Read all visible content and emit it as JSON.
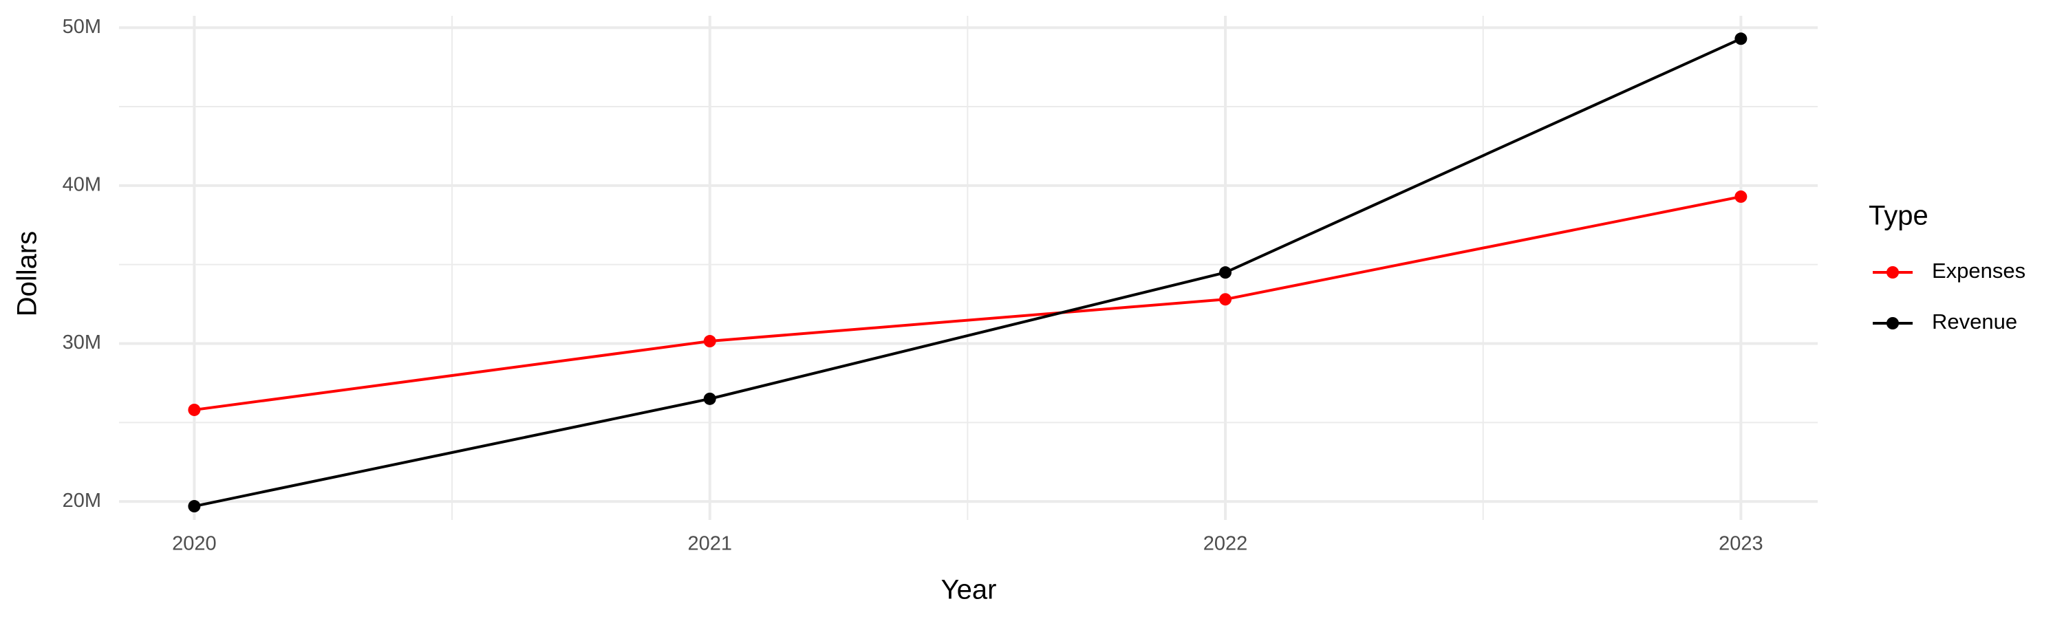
{
  "chart_data": {
    "type": "line",
    "x_label": "Year",
    "y_label": "Dollars",
    "x": [
      2020,
      2021,
      2022,
      2023
    ],
    "series": [
      {
        "name": "Expenses",
        "color": "#ff0000",
        "values": [
          25800000,
          30150000,
          32800000,
          39300000
        ]
      },
      {
        "name": "Revenue",
        "color": "#000000",
        "values": [
          19700000,
          26500000,
          34500000,
          49300000
        ]
      }
    ],
    "xlim": [
      2019.854,
      2023.149
    ],
    "xticks": [
      2020,
      2021,
      2022,
      2023
    ],
    "ylim": [
      18830000,
      50750000
    ],
    "yticks": [
      {
        "value": 20000000,
        "label": "20M"
      },
      {
        "value": 30000000,
        "label": "30M"
      },
      {
        "value": 40000000,
        "label": "40M"
      },
      {
        "value": 50000000,
        "label": "50M"
      }
    ],
    "grid": true,
    "legend_title": "Type",
    "legend": "right"
  }
}
